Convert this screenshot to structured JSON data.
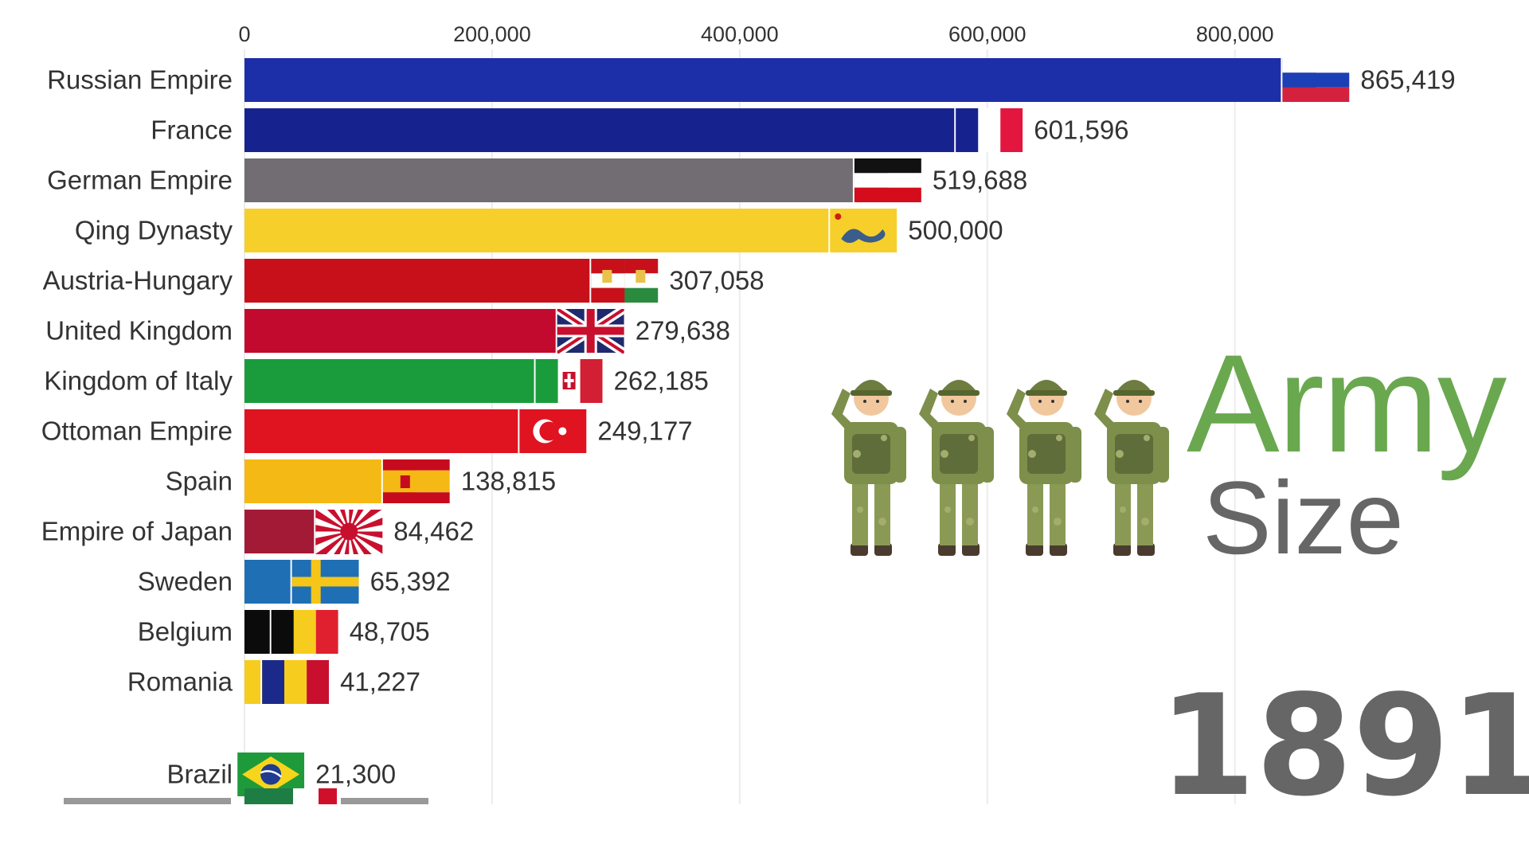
{
  "title_main": "Army",
  "title_sub": "Size",
  "year": "1891",
  "chart_data": {
    "type": "bar",
    "orientation": "horizontal",
    "xlim": [
      0,
      900000
    ],
    "x_ticks": [
      0,
      200000,
      400000,
      600000,
      800000
    ],
    "x_tick_labels": [
      "0",
      "200,000",
      "400,000",
      "600,000",
      "800,000"
    ],
    "grid": true,
    "categories": [
      "Russian Empire",
      "France",
      "German Empire",
      "Qing Dynasty",
      "Austria-Hungary",
      "United Kingdom",
      "Kingdom of Italy",
      "Ottoman Empire",
      "Spain",
      "Empire of Japan",
      "Sweden",
      "Belgium",
      "Romania",
      "Brazil"
    ],
    "values": [
      865419,
      601596,
      519688,
      500000,
      307058,
      279638,
      262185,
      249177,
      138815,
      84462,
      65392,
      48705,
      41227,
      21300
    ],
    "value_labels": [
      "865,419",
      "601,596",
      "519,688",
      "500,000",
      "307,058",
      "279,638",
      "262,185",
      "249,177",
      "138,815",
      "84,462",
      "65,392",
      "48,705",
      "41,227",
      "21,300"
    ],
    "bar_colors": [
      "#1d2fa8",
      "#16238f",
      "#716d72",
      "#f7cf2a",
      "#c8101b",
      "#c20a2f",
      "#1b9c3c",
      "#e01320",
      "#f4b914",
      "#a31a36",
      "#1f6fb5",
      "#0b0b0b",
      "#f6cd1e",
      "#1f9a3a"
    ],
    "flags": [
      "russia-flag-icon",
      "france-flag-icon",
      "german-empire-flag-icon",
      "qing-flag-icon",
      "austria-hungary-flag-icon",
      "uk-flag-icon",
      "italy-flag-icon",
      "ottoman-flag-icon",
      "spain-flag-icon",
      "japan-flag-icon",
      "sweden-flag-icon",
      "belgium-flag-icon",
      "romania-flag-icon",
      "brazil-flag-icon"
    ]
  }
}
